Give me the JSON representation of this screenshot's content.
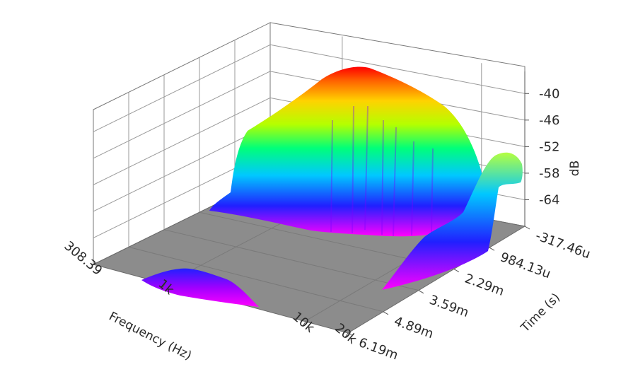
{
  "chart_data": {
    "type": "surface3d",
    "colormap": "rainbow (magenta=low, red=high)",
    "grid": true,
    "floor_color": "#8c8c8c",
    "frequency_axis": {
      "label": "Frequency (Hz)",
      "scale": "log",
      "range": [
        308.39,
        20000
      ],
      "ticks": [
        {
          "value": 308.39,
          "label": "308.39"
        },
        {
          "value": 1000,
          "label": "1k"
        },
        {
          "value": 10000,
          "label": "10k"
        },
        {
          "value": 20000,
          "label": "20k"
        }
      ]
    },
    "time_axis": {
      "label": "Time (s)",
      "range": [
        -0.00031746,
        0.00619
      ],
      "ticks": [
        {
          "value": -0.00031746,
          "label": "-317.46u"
        },
        {
          "value": 0.00098413,
          "label": "984.13u"
        },
        {
          "value": 0.00229,
          "label": "2.29m"
        },
        {
          "value": 0.00359,
          "label": "3.59m"
        },
        {
          "value": 0.00489,
          "label": "4.89m"
        },
        {
          "value": 0.00619,
          "label": "6.19m"
        }
      ]
    },
    "level_axis": {
      "label": "dB",
      "range": [
        -70,
        -35
      ],
      "ticks": [
        {
          "value": -40,
          "label": "-40"
        },
        {
          "value": -46,
          "label": "-46"
        },
        {
          "value": -52,
          "label": "-52"
        },
        {
          "value": -58,
          "label": "-58"
        },
        {
          "value": -64,
          "label": "-64"
        }
      ]
    },
    "surface": {
      "floor_db": -70,
      "peak_db": -37,
      "peak_frequency_hz": 3000,
      "peak_time_s": -0.0001,
      "high_frequency_hump": {
        "frequency_hz": 19000,
        "time_s": 0.0005,
        "level_db": -50
      },
      "late_low_frequency_bump": {
        "frequency_hz": 1000,
        "time_s": 0.0062,
        "level_db": -66
      }
    }
  }
}
